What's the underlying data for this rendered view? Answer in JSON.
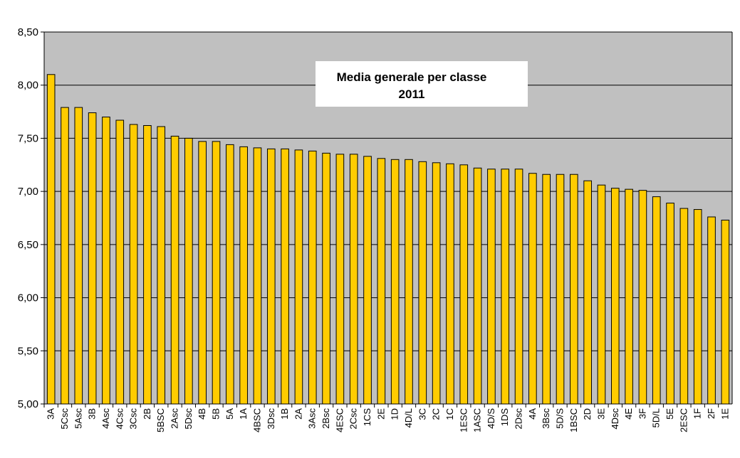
{
  "chart_data": {
    "type": "bar",
    "title": "Media generale per classe",
    "subtitle": "2011",
    "xlabel": "",
    "ylabel": "",
    "ylim": [
      5.0,
      8.5
    ],
    "yticks": [
      {
        "value": 5.0,
        "label": "5,00"
      },
      {
        "value": 5.5,
        "label": "5,50"
      },
      {
        "value": 6.0,
        "label": "6,00"
      },
      {
        "value": 6.5,
        "label": "6,50"
      },
      {
        "value": 7.0,
        "label": "7,00"
      },
      {
        "value": 7.5,
        "label": "7,50"
      },
      {
        "value": 8.0,
        "label": "8,00"
      },
      {
        "value": 8.5,
        "label": "8,50"
      }
    ],
    "grid": true,
    "legend": "none",
    "categories": [
      "3A",
      "5Csc",
      "5Asc",
      "3B",
      "4Asc",
      "4Csc",
      "3Csc",
      "2B",
      "5BSC",
      "2Asc",
      "5Dsc",
      "4B",
      "5B",
      "5A",
      "1A",
      "4BSC",
      "3Dsc",
      "1B",
      "2A",
      "3Asc",
      "2Bsc",
      "4ESC",
      "2Csc",
      "1CS",
      "2E",
      "1D",
      "4D/L",
      "3C",
      "2C",
      "1C",
      "1ESC",
      "1ASC",
      "4D/S",
      "1DS",
      "2Dsc",
      "4A",
      "3Bsc",
      "5D/S",
      "1BSC",
      "2D",
      "3E",
      "4Dsc",
      "4E",
      "3F",
      "5D/L",
      "5E",
      "2ESC",
      "1F",
      "2F",
      "1E"
    ],
    "values": [
      8.1,
      7.79,
      7.79,
      7.74,
      7.7,
      7.67,
      7.63,
      7.62,
      7.61,
      7.52,
      7.5,
      7.47,
      7.47,
      7.44,
      7.42,
      7.41,
      7.4,
      7.4,
      7.39,
      7.38,
      7.36,
      7.35,
      7.35,
      7.33,
      7.31,
      7.3,
      7.3,
      7.28,
      7.27,
      7.26,
      7.25,
      7.22,
      7.21,
      7.21,
      7.21,
      7.17,
      7.16,
      7.16,
      7.16,
      7.1,
      7.06,
      7.03,
      7.02,
      7.01,
      6.95,
      6.89,
      6.84,
      6.83,
      6.76,
      6.73
    ]
  },
  "colors": {
    "plot_background": "#c0c0c0",
    "bar_fill": "#ffcc00",
    "bar_stroke": "#000000",
    "grid_line": "#000000",
    "title_box": "#ffffff"
  }
}
